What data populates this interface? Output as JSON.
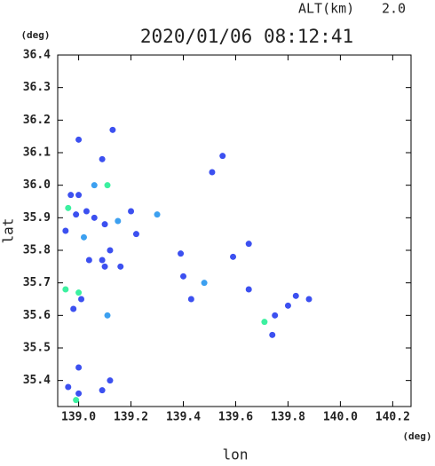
{
  "chart_data": {
    "type": "scatter",
    "header_label": "ALT(km)",
    "header_value": "2.0",
    "title": "2020/01/06 08:12:41",
    "y_unit": "(deg)",
    "x_unit": "(deg)",
    "ylabel": "lat",
    "xlabel": "lon",
    "xlim": [
      138.92,
      140.27
    ],
    "ylim": [
      35.32,
      36.4
    ],
    "xticks": [
      {
        "value": 139,
        "label": "139.0"
      },
      139.2,
      139.4,
      139.6,
      139.8,
      {
        "value": 140,
        "label": "140.0"
      },
      140.2
    ],
    "yticks": [
      35.4,
      35.5,
      35.6,
      35.7,
      35.8,
      35.9,
      {
        "value": 36,
        "label": "36.0"
      },
      36.1,
      36.2,
      36.3,
      36.4
    ],
    "series": [
      {
        "color": "#3c50f0",
        "x": [
          139.13,
          139.0,
          139.09,
          138.97,
          139.0,
          138.99,
          139.03,
          138.95,
          139.06,
          139.1,
          139.2,
          139.22,
          139.12,
          139.04,
          139.09,
          139.1,
          139.16,
          139.01,
          138.98,
          139.39,
          139.4,
          139.43,
          139.51,
          139.55,
          139.59,
          139.65,
          139.65,
          139.75,
          139.74,
          139.83,
          139.88,
          139.8,
          139.0,
          139.12,
          138.96,
          139.0,
          139.09
        ],
        "y": [
          36.17,
          36.14,
          36.08,
          35.97,
          35.97,
          35.91,
          35.92,
          35.86,
          35.9,
          35.88,
          35.92,
          35.85,
          35.8,
          35.77,
          35.77,
          35.75,
          35.75,
          35.65,
          35.62,
          35.79,
          35.72,
          35.65,
          36.04,
          36.09,
          35.78,
          35.82,
          35.68,
          35.6,
          35.54,
          35.66,
          35.65,
          35.63,
          35.44,
          35.4,
          35.38,
          35.36,
          35.37
        ]
      },
      {
        "color": "#3ca0f0",
        "x": [
          139.06,
          139.02,
          139.15,
          139.3,
          139.11,
          139.48
        ],
        "y": [
          36.0,
          35.84,
          35.89,
          35.91,
          35.6,
          35.7
        ]
      },
      {
        "color": "#3cf0a0",
        "x": [
          139.11,
          138.96,
          138.95,
          139.0,
          139.71,
          138.99
        ],
        "y": [
          36.0,
          35.93,
          35.68,
          35.67,
          35.58,
          35.34
        ]
      }
    ]
  }
}
